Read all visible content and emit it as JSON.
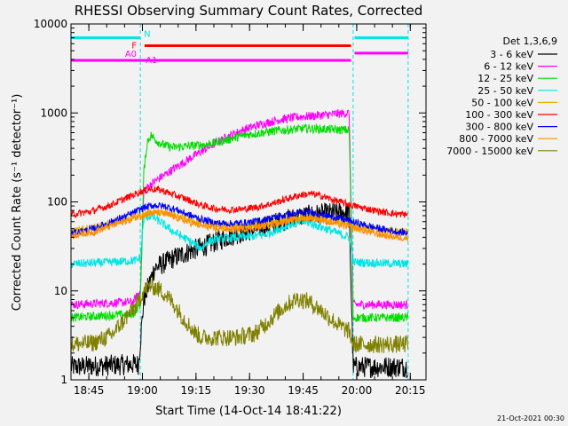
{
  "chart_data": {
    "type": "line",
    "title": "RHESSI Observing Summary Count Rates, Corrected",
    "xlabel": "Start Time (14-Oct-14 18:41:22)",
    "ylabel": "Corrected Count Rate (s⁻¹ detector⁻¹)",
    "yscale": "log",
    "ylim": [
      1,
      10000
    ],
    "xlim_minutes": [
      -1.4,
      98
    ],
    "x_ticks": [
      {
        "m": 3.6,
        "label": "18:45"
      },
      {
        "m": 18.6,
        "label": "19:00"
      },
      {
        "m": 33.6,
        "label": "19:15"
      },
      {
        "m": 48.6,
        "label": "19:30"
      },
      {
        "m": 63.6,
        "label": "19:45"
      },
      {
        "m": 78.6,
        "label": "20:00"
      },
      {
        "m": 93.6,
        "label": "20:15"
      }
    ],
    "y_ticks": [
      {
        "v": 1,
        "label": "1"
      },
      {
        "v": 10,
        "label": "10"
      },
      {
        "v": 100,
        "label": "100"
      },
      {
        "v": 1000,
        "label": "1000"
      },
      {
        "v": 10000,
        "label": "10000"
      }
    ],
    "night_intervals": [
      [
        -1.4,
        18.0
      ],
      [
        77.6,
        93.0
      ]
    ],
    "legend": {
      "header": "Det 1,3,6,9",
      "placement": "right"
    },
    "flags": [
      {
        "label": "N",
        "color": "#00e5e5",
        "segments": [
          [
            -1.4,
            18.0
          ],
          [
            78.0,
            93.0
          ]
        ],
        "level": 7000
      },
      {
        "label": "F",
        "color": "#ff0000",
        "segments": [
          [
            19.2,
            77.0
          ]
        ],
        "level": 5700
      },
      {
        "label": "A0",
        "color": "#ff00ff",
        "segments": [
          [
            -1.4,
            77.0
          ]
        ],
        "level": 3900
      },
      {
        "label": "A1",
        "color": "#ff00ff",
        "segments": [
          [
            78.0,
            93.0
          ]
        ],
        "level": 4700
      }
    ],
    "series": [
      {
        "name": "3 - 6 keV",
        "color": "#000000",
        "points": [
          [
            -1.4,
            1.4
          ],
          [
            17.5,
            1.5
          ],
          [
            19,
            8
          ],
          [
            22,
            18
          ],
          [
            27,
            23
          ],
          [
            32,
            28
          ],
          [
            37,
            33
          ],
          [
            42,
            40
          ],
          [
            47,
            46
          ],
          [
            52,
            52
          ],
          [
            57,
            60
          ],
          [
            62,
            68
          ],
          [
            67,
            72
          ],
          [
            72,
            75
          ],
          [
            76.5,
            77
          ],
          [
            77.6,
            1.4
          ],
          [
            93,
            1.4
          ]
        ]
      },
      {
        "name": "6 - 12 keV",
        "color": "#ff00ff",
        "points": [
          [
            -1.4,
            7
          ],
          [
            16,
            7.5
          ],
          [
            18,
            10
          ],
          [
            19,
            135
          ],
          [
            22,
            170
          ],
          [
            27,
            230
          ],
          [
            32,
            310
          ],
          [
            37,
            410
          ],
          [
            42,
            530
          ],
          [
            47,
            650
          ],
          [
            52,
            750
          ],
          [
            57,
            840
          ],
          [
            62,
            900
          ],
          [
            67,
            930
          ],
          [
            72,
            970
          ],
          [
            76.5,
            1000
          ],
          [
            77.6,
            7
          ],
          [
            93,
            7
          ]
        ]
      },
      {
        "name": "12 - 25 keV",
        "color": "#00dd00",
        "points": [
          [
            -1.4,
            5
          ],
          [
            16,
            5.5
          ],
          [
            18,
            7
          ],
          [
            19,
            220
          ],
          [
            20,
            480
          ],
          [
            21,
            560
          ],
          [
            23,
            470
          ],
          [
            25,
            430
          ],
          [
            27,
            410
          ],
          [
            30,
            420
          ],
          [
            33,
            430
          ],
          [
            36,
            440
          ],
          [
            40,
            470
          ],
          [
            44,
            520
          ],
          [
            48,
            570
          ],
          [
            52,
            600
          ],
          [
            56,
            630
          ],
          [
            60,
            650
          ],
          [
            64,
            670
          ],
          [
            68,
            660
          ],
          [
            72,
            650
          ],
          [
            76.5,
            640
          ],
          [
            77.6,
            5
          ],
          [
            93,
            5
          ]
        ]
      },
      {
        "name": "25 - 50 keV",
        "color": "#00e5e5",
        "points": [
          [
            -1.4,
            20
          ],
          [
            10,
            21
          ],
          [
            17,
            22
          ],
          [
            18,
            24
          ],
          [
            19,
            65
          ],
          [
            21,
            70
          ],
          [
            24,
            58
          ],
          [
            27,
            47
          ],
          [
            30,
            40
          ],
          [
            33,
            34
          ],
          [
            35,
            30
          ],
          [
            37,
            36
          ],
          [
            41,
            39
          ],
          [
            45,
            40
          ],
          [
            49,
            41
          ],
          [
            53,
            43
          ],
          [
            56,
            48
          ],
          [
            60,
            56
          ],
          [
            64,
            60
          ],
          [
            67,
            55
          ],
          [
            70,
            50
          ],
          [
            73,
            45
          ],
          [
            76.5,
            40
          ],
          [
            77.6,
            21
          ],
          [
            93,
            20
          ]
        ]
      },
      {
        "name": "50 - 100 keV",
        "color": "#e8b000",
        "points": [
          [
            -1.4,
            48
          ],
          [
            5,
            52
          ],
          [
            10,
            58
          ],
          [
            15,
            65
          ],
          [
            19,
            73
          ],
          [
            22,
            77
          ],
          [
            25,
            75
          ],
          [
            28,
            70
          ],
          [
            31,
            64
          ],
          [
            35,
            58
          ],
          [
            39,
            55
          ],
          [
            43,
            54
          ],
          [
            47,
            53
          ],
          [
            51,
            55
          ],
          [
            55,
            58
          ],
          [
            59,
            63
          ],
          [
            63,
            67
          ],
          [
            66,
            68
          ],
          [
            69,
            65
          ],
          [
            72,
            62
          ],
          [
            76,
            57
          ],
          [
            80,
            52
          ],
          [
            85,
            49
          ],
          [
            90,
            47
          ],
          [
            93,
            46
          ]
        ]
      },
      {
        "name": "100 - 300 keV",
        "color": "#ff0000",
        "points": [
          [
            -1.4,
            72
          ],
          [
            4,
            78
          ],
          [
            9,
            90
          ],
          [
            14,
            110
          ],
          [
            18,
            130
          ],
          [
            21,
            140
          ],
          [
            24,
            135
          ],
          [
            27,
            122
          ],
          [
            31,
            107
          ],
          [
            35,
            92
          ],
          [
            39,
            84
          ],
          [
            43,
            82
          ],
          [
            47,
            83
          ],
          [
            51,
            88
          ],
          [
            55,
            96
          ],
          [
            59,
            108
          ],
          [
            63,
            120
          ],
          [
            66,
            123
          ],
          [
            69,
            116
          ],
          [
            72,
            105
          ],
          [
            76,
            95
          ],
          [
            80,
            86
          ],
          [
            85,
            78
          ],
          [
            90,
            73
          ],
          [
            93,
            72
          ]
        ]
      },
      {
        "name": "300 - 800 keV",
        "color": "#0000ff",
        "points": [
          [
            -1.4,
            44
          ],
          [
            5,
            50
          ],
          [
            10,
            60
          ],
          [
            15,
            72
          ],
          [
            19,
            86
          ],
          [
            22,
            92
          ],
          [
            25,
            89
          ],
          [
            28,
            82
          ],
          [
            31,
            73
          ],
          [
            35,
            64
          ],
          [
            39,
            58
          ],
          [
            43,
            57
          ],
          [
            47,
            58
          ],
          [
            51,
            61
          ],
          [
            55,
            66
          ],
          [
            59,
            71
          ],
          [
            63,
            75
          ],
          [
            66,
            76
          ],
          [
            69,
            72
          ],
          [
            72,
            68
          ],
          [
            76,
            62
          ],
          [
            80,
            56
          ],
          [
            85,
            50
          ],
          [
            90,
            46
          ],
          [
            93,
            45
          ]
        ]
      },
      {
        "name": "800 - 7000 keV",
        "color": "#ff8c00",
        "points": [
          [
            -1.4,
            42
          ],
          [
            5,
            46
          ],
          [
            10,
            54
          ],
          [
            15,
            63
          ],
          [
            19,
            72
          ],
          [
            22,
            76
          ],
          [
            25,
            73
          ],
          [
            28,
            67
          ],
          [
            31,
            60
          ],
          [
            35,
            54
          ],
          [
            39,
            50
          ],
          [
            43,
            49
          ],
          [
            47,
            50
          ],
          [
            51,
            52
          ],
          [
            55,
            56
          ],
          [
            59,
            61
          ],
          [
            63,
            65
          ],
          [
            66,
            66
          ],
          [
            69,
            62
          ],
          [
            72,
            58
          ],
          [
            76,
            53
          ],
          [
            80,
            48
          ],
          [
            85,
            43
          ],
          [
            90,
            40
          ],
          [
            93,
            39
          ]
        ]
      },
      {
        "name": "7000 - 15000 keV",
        "color": "#808000",
        "points": [
          [
            -1.4,
            2.5
          ],
          [
            5,
            2.6
          ],
          [
            10,
            3.2
          ],
          [
            14,
            5
          ],
          [
            17,
            7
          ],
          [
            19,
            10
          ],
          [
            21,
            11.5
          ],
          [
            24,
            10
          ],
          [
            27,
            7.5
          ],
          [
            30,
            5
          ],
          [
            33,
            3.5
          ],
          [
            35,
            3.0
          ],
          [
            40,
            3.0
          ],
          [
            45,
            3.0
          ],
          [
            50,
            3.3
          ],
          [
            53,
            4.2
          ],
          [
            56,
            5.5
          ],
          [
            59,
            7.0
          ],
          [
            62,
            8.2
          ],
          [
            65,
            7.6
          ],
          [
            68,
            6.3
          ],
          [
            71,
            5.0
          ],
          [
            74,
            4.0
          ],
          [
            76.5,
            3.5
          ],
          [
            77.6,
            2.5
          ],
          [
            93,
            2.5
          ]
        ]
      }
    ]
  },
  "footer": {
    "timestamp": "21-Oct-2021 00:30"
  }
}
